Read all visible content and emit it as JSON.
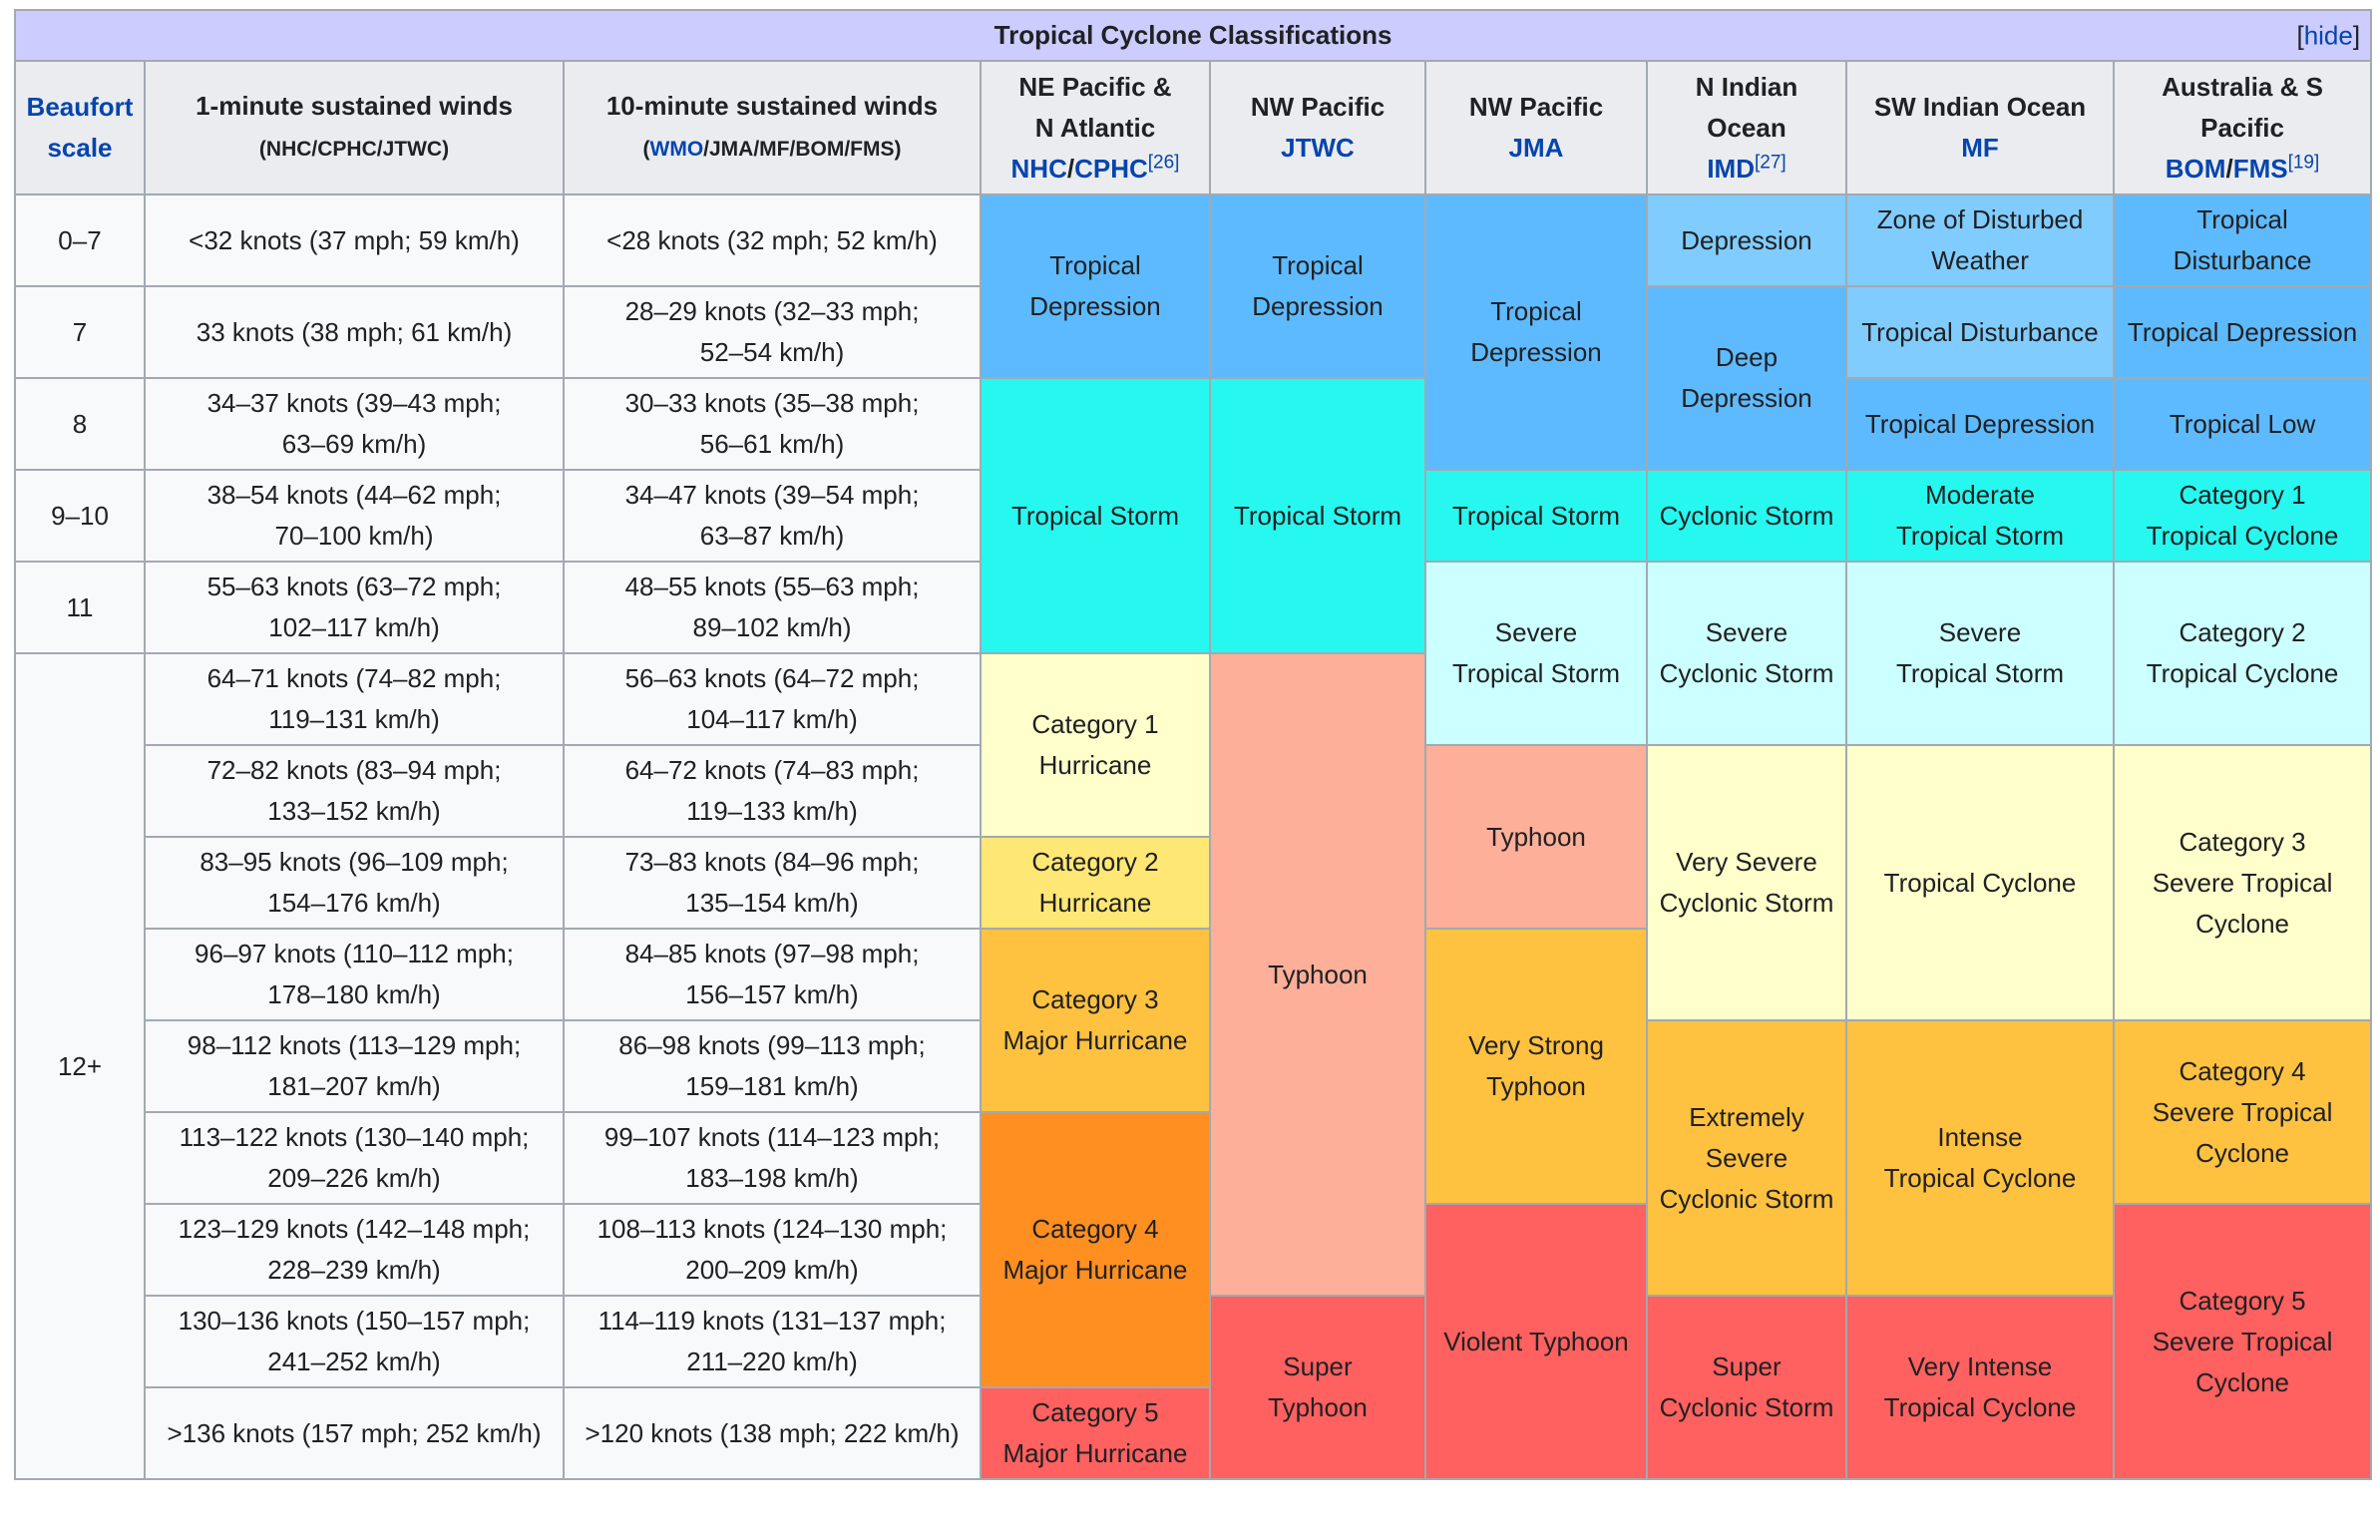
{
  "title": "Tropical Cyclone Classifications",
  "hide": {
    "open": "[",
    "label": "hide",
    "close": "]"
  },
  "colors": {
    "header_bg": "#eaecf0",
    "title_bg": "#ccccff",
    "link": "#0645ad",
    "depression_blue": "#5ebaff",
    "light_blue": "#80ccff",
    "storm_cyan": "#26f8f0",
    "severe_storm_light_cyan": "#ccffff",
    "cat1_light_yellow": "#ffffcc",
    "cat2_yellow": "#ffe775",
    "cat3_orange": "#ffc140",
    "cat4_dark_orange": "#ff8f20",
    "cat5_red": "#ff6060",
    "typhoon_salmon": "#fdaf9a"
  },
  "headers": {
    "beaufort": {
      "line1": "Beaufort",
      "line2": "scale"
    },
    "one_min": {
      "title": "1-minute sustained winds",
      "sub": "(NHC/CPHC/JTWC)"
    },
    "ten_min": {
      "title": "10-minute sustained winds",
      "sub_open": "(",
      "sub_link": "WMO",
      "sub_rest": "/JMA/MF/BOM/FMS)"
    },
    "ne_pacific": {
      "line1": "NE Pacific &",
      "line2": "N Atlantic",
      "link1": "NHC",
      "sep": "/",
      "link2": "CPHC",
      "ref": "[26]"
    },
    "nw_pacific_jtwc": {
      "line1": "NW Pacific",
      "link": "JTWC"
    },
    "nw_pacific_jma": {
      "line1": "NW Pacific",
      "link": "JMA"
    },
    "n_indian": {
      "line1": "N Indian",
      "line2": "Ocean",
      "link": "IMD",
      "ref": "[27]"
    },
    "sw_indian": {
      "line1": "SW Indian Ocean",
      "link": "MF"
    },
    "australia": {
      "line1": "Australia & S",
      "line2": "Pacific",
      "link1": "BOM",
      "sep": "/",
      "link2": "FMS",
      "ref": "[19]"
    }
  },
  "beaufort_values": [
    "0–7",
    "7",
    "8",
    "9–10",
    "11",
    "12+"
  ],
  "rows": [
    {
      "one_min": [
        "<32 knots (37 mph; 59 km/h)"
      ],
      "ten_min": [
        "<28 knots (32 mph; 52 km/h)"
      ]
    },
    {
      "one_min": [
        "33 knots (38 mph; 61 km/h)"
      ],
      "ten_min": [
        "28–29 knots (32–33 mph;",
        "52–54 km/h)"
      ]
    },
    {
      "one_min": [
        "34–37 knots (39–43 mph;",
        "63–69 km/h)"
      ],
      "ten_min": [
        "30–33 knots (35–38 mph;",
        "56–61 km/h)"
      ]
    },
    {
      "one_min": [
        "38–54 knots (44–62 mph;",
        "70–100 km/h)"
      ],
      "ten_min": [
        "34–47 knots (39–54 mph;",
        "63–87 km/h)"
      ]
    },
    {
      "one_min": [
        "55–63 knots (63–72 mph;",
        "102–117 km/h)"
      ],
      "ten_min": [
        "48–55 knots (55–63 mph;",
        "89–102 km/h)"
      ]
    },
    {
      "one_min": [
        "64–71 knots (74–82 mph;",
        "119–131 km/h)"
      ],
      "ten_min": [
        "56–63 knots (64–72 mph;",
        "104–117 km/h)"
      ]
    },
    {
      "one_min": [
        "72–82 knots (83–94 mph;",
        "133–152 km/h)"
      ],
      "ten_min": [
        "64–72 knots (74–83 mph;",
        "119–133 km/h)"
      ]
    },
    {
      "one_min": [
        "83–95 knots (96–109 mph;",
        "154–176 km/h)"
      ],
      "ten_min": [
        "73–83 knots (84–96 mph;",
        "135–154 km/h)"
      ]
    },
    {
      "one_min": [
        "96–97 knots (110–112 mph;",
        "178–180 km/h)"
      ],
      "ten_min": [
        "84–85 knots (97–98 mph;",
        "156–157 km/h)"
      ]
    },
    {
      "one_min": [
        "98–112 knots (113–129 mph;",
        "181–207 km/h)"
      ],
      "ten_min": [
        "86–98 knots (99–113 mph;",
        "159–181 km/h)"
      ]
    },
    {
      "one_min": [
        "113–122 knots (130–140 mph;",
        "209–226 km/h)"
      ],
      "ten_min": [
        "99–107 knots (114–123 mph;",
        "183–198 km/h)"
      ]
    },
    {
      "one_min": [
        "123–129 knots (142–148 mph;",
        "228–239 km/h)"
      ],
      "ten_min": [
        "108–113 knots (124–130 mph;",
        "200–209 km/h)"
      ]
    },
    {
      "one_min": [
        "130–136 knots (150–157 mph;",
        "241–252 km/h)"
      ],
      "ten_min": [
        "114–119 knots (131–137 mph;",
        "211–220 km/h)"
      ]
    },
    {
      "one_min": [
        ">136 knots (157 mph; 252 km/h)"
      ],
      "ten_min": [
        ">120 knots (138 mph; 222 km/h)"
      ]
    }
  ],
  "agencies": {
    "ne_pacific": [
      {
        "lines": [
          "Tropical",
          "Depression"
        ],
        "color": "#5ebaff"
      },
      {
        "lines": [
          "Tropical Storm"
        ],
        "color": "#26f8f0"
      },
      {
        "lines": [
          "Category 1",
          "Hurricane"
        ],
        "color": "#ffffcc"
      },
      {
        "lines": [
          "Category 2",
          "Hurricane"
        ],
        "color": "#ffe775"
      },
      {
        "lines": [
          "Category 3",
          "Major Hurricane"
        ],
        "color": "#ffc140"
      },
      {
        "lines": [
          "Category 4",
          "Major Hurricane"
        ],
        "color": "#ff8f20"
      },
      {
        "lines": [
          "Category 5",
          "Major Hurricane"
        ],
        "color": "#ff6060"
      }
    ],
    "nw_pacific_jtwc": [
      {
        "lines": [
          "Tropical",
          "Depression"
        ],
        "color": "#5ebaff"
      },
      {
        "lines": [
          "Tropical Storm"
        ],
        "color": "#26f8f0"
      },
      {
        "lines": [
          "Typhoon"
        ],
        "color": "#fdaf9a"
      },
      {
        "lines": [
          "Super",
          "Typhoon"
        ],
        "color": "#ff6060"
      }
    ],
    "nw_pacific_jma": [
      {
        "lines": [
          "Tropical",
          "Depression"
        ],
        "color": "#5ebaff"
      },
      {
        "lines": [
          "Tropical Storm"
        ],
        "color": "#26f8f0"
      },
      {
        "lines": [
          "Severe",
          "Tropical Storm"
        ],
        "color": "#ccffff"
      },
      {
        "lines": [
          "Typhoon"
        ],
        "color": "#fdaf9a"
      },
      {
        "lines": [
          "Very Strong",
          "Typhoon"
        ],
        "color": "#ffc140"
      },
      {
        "lines": [
          "Violent Typhoon"
        ],
        "color": "#ff6060"
      }
    ],
    "n_indian": [
      {
        "lines": [
          "Depression"
        ],
        "color": "#80ccff"
      },
      {
        "lines": [
          "Deep",
          "Depression"
        ],
        "color": "#5ebaff"
      },
      {
        "lines": [
          "Cyclonic Storm"
        ],
        "color": "#26f8f0"
      },
      {
        "lines": [
          "Severe",
          "Cyclonic Storm"
        ],
        "color": "#ccffff"
      },
      {
        "lines": [
          "Very Severe",
          "Cyclonic Storm"
        ],
        "color": "#ffffcc"
      },
      {
        "lines": [
          "Extremely",
          "Severe",
          "Cyclonic Storm"
        ],
        "color": "#ffc140"
      },
      {
        "lines": [
          "Super",
          "Cyclonic Storm"
        ],
        "color": "#ff6060"
      }
    ],
    "sw_indian": [
      {
        "lines": [
          "Zone of Disturbed",
          "Weather"
        ],
        "color": "#80ccff"
      },
      {
        "lines": [
          "Tropical Disturbance"
        ],
        "color": "#80ccff"
      },
      {
        "lines": [
          "Tropical Depression"
        ],
        "color": "#5ebaff"
      },
      {
        "lines": [
          "Moderate",
          "Tropical Storm"
        ],
        "color": "#26f8f0"
      },
      {
        "lines": [
          "Severe",
          "Tropical Storm"
        ],
        "color": "#ccffff"
      },
      {
        "lines": [
          "Tropical Cyclone"
        ],
        "color": "#ffffcc"
      },
      {
        "lines": [
          "Intense",
          "Tropical Cyclone"
        ],
        "color": "#ffc140"
      },
      {
        "lines": [
          "Very Intense",
          "Tropical Cyclone"
        ],
        "color": "#ff6060"
      }
    ],
    "australia": [
      {
        "lines": [
          "Tropical",
          "Disturbance"
        ],
        "color": "#5ebaff"
      },
      {
        "lines": [
          "Tropical Depression"
        ],
        "color": "#5ebaff"
      },
      {
        "lines": [
          "Tropical Low"
        ],
        "color": "#5ebaff"
      },
      {
        "lines": [
          "Category 1",
          "Tropical Cyclone"
        ],
        "color": "#26f8f0"
      },
      {
        "lines": [
          "Category 2",
          "Tropical Cyclone"
        ],
        "color": "#ccffff"
      },
      {
        "lines": [
          "Category 3",
          "Severe Tropical",
          "Cyclone"
        ],
        "color": "#ffffcc"
      },
      {
        "lines": [
          "Category 4",
          "Severe Tropical",
          "Cyclone"
        ],
        "color": "#ffc140"
      },
      {
        "lines": [
          "Category 5",
          "Severe Tropical",
          "Cyclone"
        ],
        "color": "#ff6060"
      }
    ]
  }
}
